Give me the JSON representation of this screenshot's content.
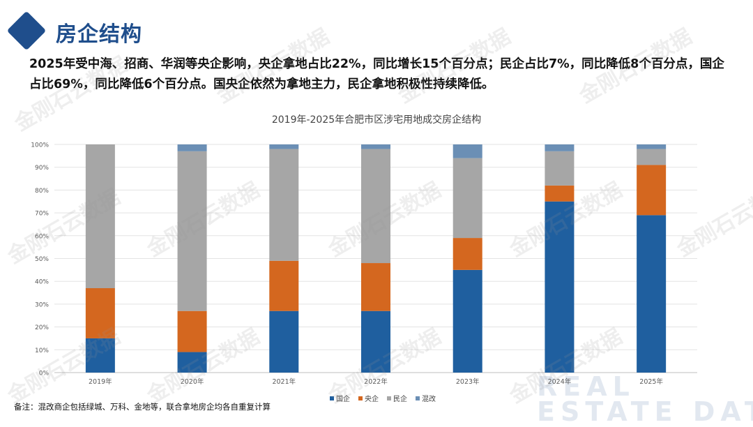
{
  "header": {
    "title": "房企结构"
  },
  "description": "2025年受中海、招商、华润等央企影响，央企拿地占比22%，同比增长15个百分点；民企占比7%，同比降低8个百分点，国企占比69%，同比降低6个百分点。国央企依然为拿地主力，民企拿地积极性持续降低。",
  "note": "备注：混改商企包括绿城、万科、金地等，联合拿地房企均各自重复计算",
  "watermark_text": "金刚石云数据",
  "background_brand": {
    "line1": "REAL",
    "line2": "ESTATE DATA"
  },
  "chart_data": {
    "type": "bar",
    "stacked": true,
    "title": "2019年-2025年合肥市区涉宅用地成交房企结构",
    "categories": [
      "2019年",
      "2020年",
      "2021年",
      "2022年",
      "2023年",
      "2024年",
      "2025年"
    ],
    "series": [
      {
        "name": "国企",
        "color": "#1f5f9f",
        "values": [
          15,
          9,
          27,
          27,
          45,
          75,
          69
        ]
      },
      {
        "name": "央企",
        "color": "#d4671f",
        "values": [
          22,
          18,
          22,
          21,
          14,
          7,
          22
        ]
      },
      {
        "name": "民企",
        "color": "#a6a6a6",
        "values": [
          63,
          70,
          49,
          50,
          35,
          15,
          7
        ]
      },
      {
        "name": "混改",
        "color": "#6b8fb5",
        "values": [
          0,
          3,
          2,
          2,
          6,
          3,
          2
        ]
      }
    ],
    "yticks": [
      "0%",
      "10%",
      "20%",
      "30%",
      "40%",
      "50%",
      "60%",
      "70%",
      "80%",
      "90%",
      "100%"
    ],
    "ylim": [
      0,
      100
    ],
    "grid": true,
    "legend_position": "bottom"
  }
}
